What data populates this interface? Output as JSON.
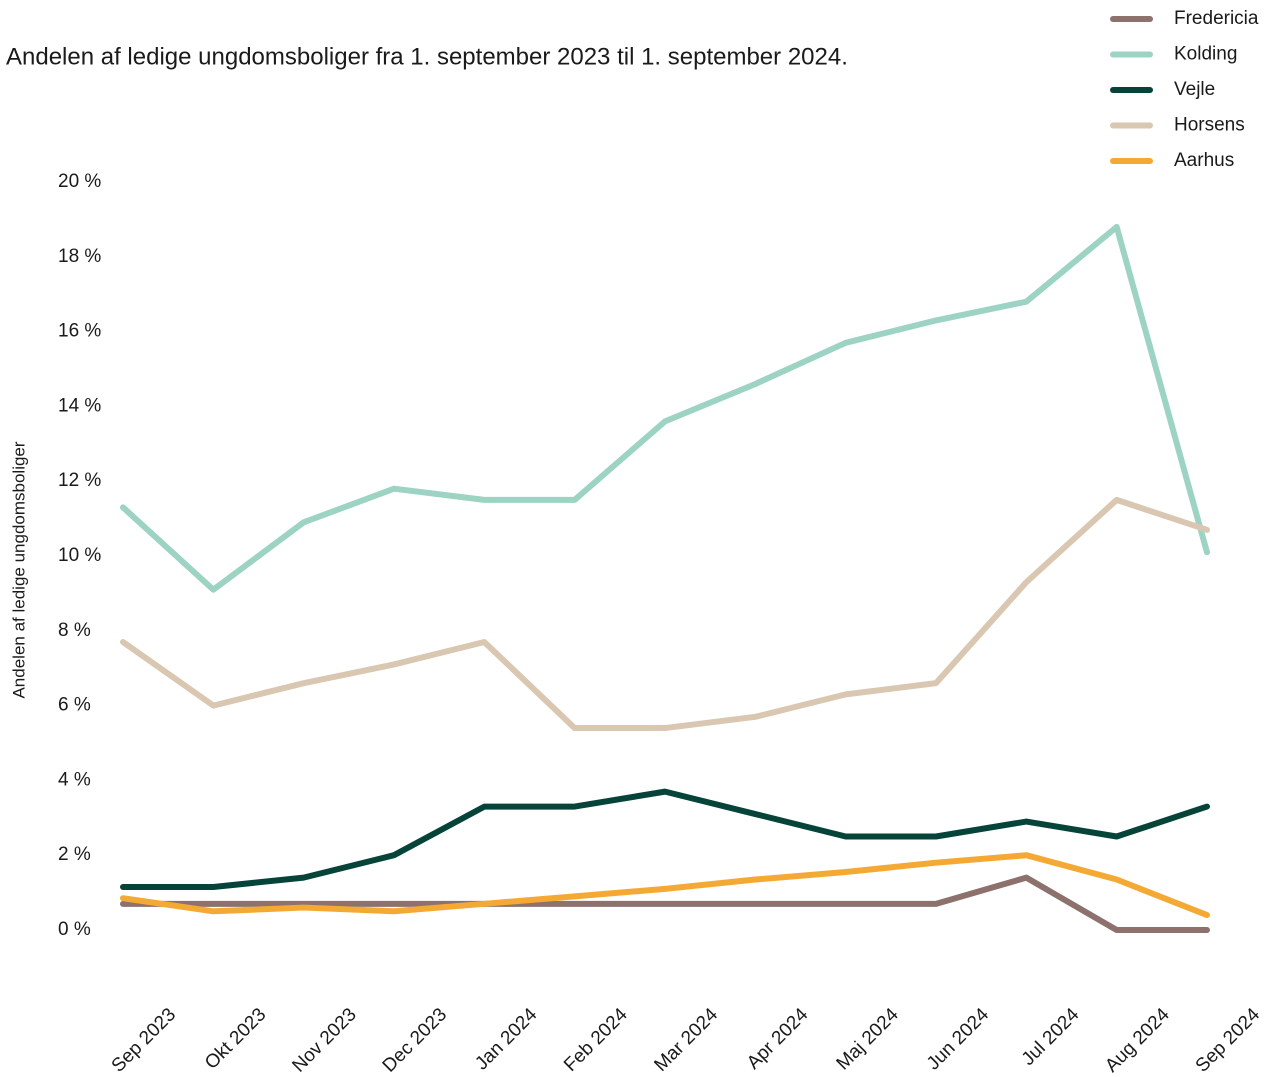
{
  "chart_data": {
    "type": "line",
    "subtitle": "Andelen af ledige ungdomsboliger fra 1. september 2023 til 1. september 2024.",
    "ylabel": "Andelen af ledige ungdomsboliger",
    "categories": [
      "Sep 2023",
      "Okt 2023",
      "Nov 2023",
      "Dec 2023",
      "Jan 2024",
      "Feb 2024",
      "Mar 2024",
      "Apr 2024",
      "Maj 2024",
      "Jun 2024",
      "Jul 2024",
      "Aug 2024",
      "Sep 2024"
    ],
    "series": [
      {
        "name": "Fredericia",
        "color": "#8c716c",
        "values": [
          0.7,
          0.7,
          0.7,
          0.7,
          0.7,
          0.7,
          0.7,
          0.7,
          0.7,
          0.7,
          1.4,
          0,
          0
        ]
      },
      {
        "name": "Kolding",
        "color": "#9dd3c2",
        "values": [
          11.3,
          9.1,
          10.9,
          11.8,
          11.5,
          11.5,
          13.6,
          14.6,
          15.7,
          16.3,
          16.8,
          18.8,
          10.1
        ]
      },
      {
        "name": "Vejle",
        "color": "#06443a",
        "values": [
          1.15,
          1.15,
          1.4,
          2.0,
          3.3,
          3.3,
          3.7,
          3.1,
          2.5,
          2.5,
          2.9,
          2.5,
          3.3
        ]
      },
      {
        "name": "Horsens",
        "color": "#d9c7b1",
        "values": [
          7.7,
          6.0,
          6.6,
          7.1,
          7.7,
          5.4,
          5.4,
          5.7,
          6.3,
          6.6,
          9.3,
          11.5,
          10.7
        ]
      },
      {
        "name": "Aarhus",
        "color": "#f4a935",
        "values": [
          0.85,
          0.5,
          0.6,
          0.5,
          0.7,
          0.9,
          1.1,
          1.35,
          1.55,
          1.8,
          2.0,
          1.35,
          0.4
        ]
      }
    ],
    "ylim": [
      0,
      20
    ],
    "yticks": [
      {
        "value": 0,
        "label": "0 %"
      },
      {
        "value": 2,
        "label": "2 %"
      },
      {
        "value": 4,
        "label": "4 %"
      },
      {
        "value": 6,
        "label": "6 %"
      },
      {
        "value": 8,
        "label": "8 %"
      },
      {
        "value": 10,
        "label": "10 %"
      },
      {
        "value": 12,
        "label": "12 %"
      },
      {
        "value": 14,
        "label": "14 %"
      },
      {
        "value": 16,
        "label": "16 %"
      },
      {
        "value": 18,
        "label": "18 %"
      },
      {
        "value": 20,
        "label": "20 %"
      }
    ],
    "grid": false,
    "legend": "upper right"
  }
}
